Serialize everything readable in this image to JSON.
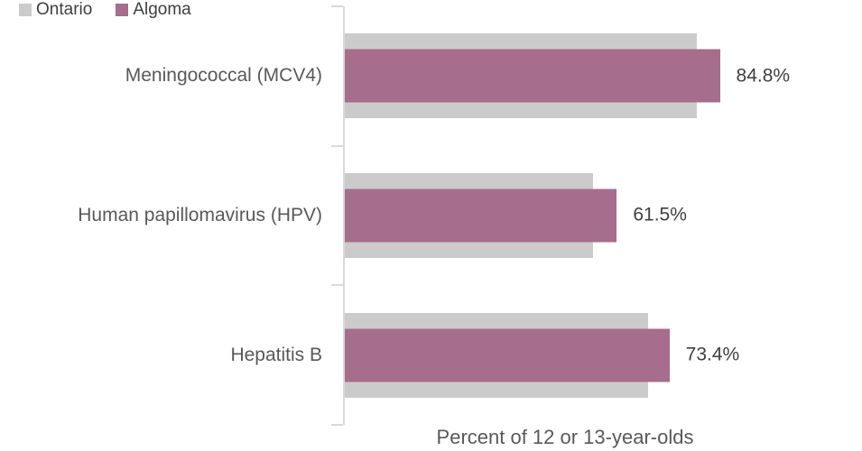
{
  "legend": {
    "items": [
      {
        "label": "Ontario",
        "color": "#CBCBCB"
      },
      {
        "label": "Algoma",
        "color": "#A66D8C"
      }
    ]
  },
  "axis": {
    "title": "Percent of 12 or 13-year-olds"
  },
  "colors": {
    "ontario_bar": "#CBCBCB",
    "algoma_bar": "#A66D8C",
    "axis_line": "#D9D9D9",
    "label_text": "#404040",
    "category_text": "#595959"
  },
  "chart_data": {
    "type": "bar",
    "orientation": "horizontal",
    "title": "",
    "xlabel": "Percent of 12 or 13-year-olds",
    "ylabel": "",
    "xlim": [
      0,
      100
    ],
    "grid": false,
    "legend_position": "top-left",
    "categories": [
      "Meningococcal (MCV4)",
      "Human papillomavirus (HPV)",
      "Hepatitis B"
    ],
    "series": [
      {
        "name": "Ontario",
        "color": "#CBCBCB",
        "values": [
          79.5,
          56.1,
          68.6
        ]
      },
      {
        "name": "Algoma",
        "color": "#A66D8C",
        "values": [
          84.8,
          61.5,
          73.4
        ]
      }
    ],
    "data_labels": [
      "84.8%",
      "61.5%",
      "73.4%"
    ]
  }
}
